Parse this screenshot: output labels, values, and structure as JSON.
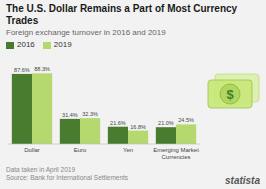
{
  "chart_data": {
    "type": "bar",
    "title": "The U.S. Dollar Remains a Part of Most Currency Trades",
    "subtitle": "Foreign exchange turnover in 2016 and 2019",
    "categories": [
      "Dollar",
      "Euro",
      "Yen",
      "Emerging Market\nCurrencies"
    ],
    "series": [
      {
        "name": "2016",
        "color": "#4a7c2f",
        "values": [
          87.6,
          31.4,
          21.6,
          21.0
        ],
        "value_labels": [
          "87.6%",
          "31.4%",
          "21.6%",
          "21.0%"
        ]
      },
      {
        "name": "2019",
        "color": "#b5d96e",
        "values": [
          88.3,
          32.3,
          16.8,
          24.5
        ],
        "value_labels": [
          "88.3%",
          "32.3%",
          "16.8%",
          "24.5%"
        ]
      }
    ],
    "ylim": [
      0,
      100
    ],
    "grid": false,
    "legend": "top",
    "data_labels": true,
    "tick_labels": "x",
    "annotations": [
      "Data taken in April 2019",
      "Source: Bank for International Settlements",
      "statista",
      "$"
    ]
  }
}
